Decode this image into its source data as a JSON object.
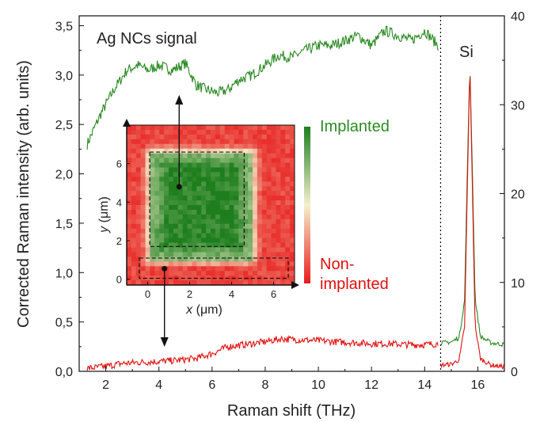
{
  "chart_data": [
    {
      "type": "line",
      "xlabel": "Raman shift (THz)",
      "ylabel": "Corrected Raman intensity (arb. units)",
      "xlim": [
        1,
        17
      ],
      "ylim": [
        0,
        3.6
      ],
      "y2lim": [
        0,
        40
      ],
      "x_ticks": [
        "2",
        "4",
        "6",
        "8",
        "10",
        "12",
        "14",
        "16"
      ],
      "x_tick_values": [
        2,
        4,
        6,
        8,
        10,
        12,
        14,
        16
      ],
      "y_ticks": [
        "0,0",
        "0,5",
        "1,0",
        "1,5",
        "2,0",
        "2,5",
        "3,0",
        "3,5"
      ],
      "y_tick_values": [
        0,
        0.5,
        1.0,
        1.5,
        2.0,
        2.5,
        3.0,
        3.5
      ],
      "y2_ticks": [
        "0",
        "10",
        "20",
        "30",
        "40"
      ],
      "y2_tick_values": [
        0,
        10,
        20,
        30,
        40
      ],
      "divider_x": 14.6,
      "annotations": {
        "signal": "Ag NCs signal",
        "si": "Si"
      },
      "series": [
        {
          "name": "Implanted",
          "color": "#2a8a22",
          "axis": "left",
          "x": [
            1.3,
            1.8,
            2.3,
            2.8,
            3.2,
            3.6,
            4.0,
            4.5,
            5.0,
            5.4,
            5.8,
            6.2,
            6.6,
            7.0,
            7.5,
            8.0,
            8.5,
            9.0,
            9.5,
            10.0,
            10.5,
            11.0,
            11.5,
            12.0,
            12.5,
            13.0,
            13.5,
            14.0,
            14.5
          ],
          "values": [
            2.3,
            2.6,
            2.85,
            3.05,
            3.1,
            3.05,
            3.1,
            3.05,
            3.12,
            2.9,
            2.85,
            2.82,
            2.85,
            2.95,
            3.0,
            3.1,
            3.2,
            3.18,
            3.25,
            3.3,
            3.3,
            3.35,
            3.4,
            3.3,
            3.45,
            3.4,
            3.35,
            3.45,
            3.3
          ]
        },
        {
          "name": "Non-implanted",
          "color": "#e01010",
          "axis": "left",
          "x": [
            1.3,
            2.0,
            2.6,
            3.2,
            4.0,
            4.6,
            5.4,
            6.0,
            6.6,
            7.2,
            8.0,
            8.6,
            9.2,
            10.0,
            10.6,
            11.4,
            12.0,
            12.6,
            13.4,
            14.0,
            14.5
          ],
          "values": [
            0.03,
            0.05,
            0.08,
            0.09,
            0.1,
            0.11,
            0.13,
            0.18,
            0.25,
            0.27,
            0.3,
            0.33,
            0.32,
            0.31,
            0.3,
            0.29,
            0.28,
            0.28,
            0.27,
            0.27,
            0.28
          ]
        },
        {
          "name": "Implanted (Si region)",
          "color": "#2a8a22",
          "axis": "right",
          "x": [
            14.6,
            15.0,
            15.3,
            15.5,
            15.6,
            15.7,
            15.8,
            15.9,
            16.1,
            16.5,
            17.0
          ],
          "values": [
            3.2,
            3.3,
            3.8,
            8.0,
            22.0,
            34.5,
            22.0,
            8.0,
            3.9,
            3.2,
            3.0
          ]
        },
        {
          "name": "Non-implanted (Si region)",
          "color": "#e01010",
          "axis": "right",
          "x": [
            14.6,
            15.0,
            15.3,
            15.5,
            15.6,
            15.7,
            15.8,
            15.9,
            16.1,
            16.5,
            17.0
          ],
          "values": [
            0.7,
            0.8,
            1.3,
            5.0,
            20.0,
            34.5,
            20.0,
            5.0,
            1.4,
            0.7,
            0.5
          ]
        }
      ]
    },
    {
      "type": "heatmap",
      "xlabel_var": "x",
      "xlabel_unit": "(μm)",
      "ylabel_var": "y",
      "ylabel_unit": "(μm)",
      "xlim": [
        -1,
        7
      ],
      "ylim": [
        -0.3,
        8
      ],
      "x_ticks": [
        "0",
        "2",
        "4",
        "6"
      ],
      "x_tick_values": [
        0,
        2,
        4,
        6
      ],
      "y_ticks": [
        "0",
        "2",
        "4",
        "6"
      ],
      "y_tick_values": [
        0,
        2,
        4,
        6
      ],
      "implanted_region": {
        "x": [
          0.1,
          5.0
        ],
        "y": [
          1.0,
          6.6
        ]
      },
      "colorbar": {
        "top_label": "Implanted",
        "bottom_label": "Non-\nimplanted",
        "top_color": "#1e7e1e",
        "mid_color": "#f4f0cc",
        "bottom_color": "#e81c1c"
      }
    }
  ]
}
